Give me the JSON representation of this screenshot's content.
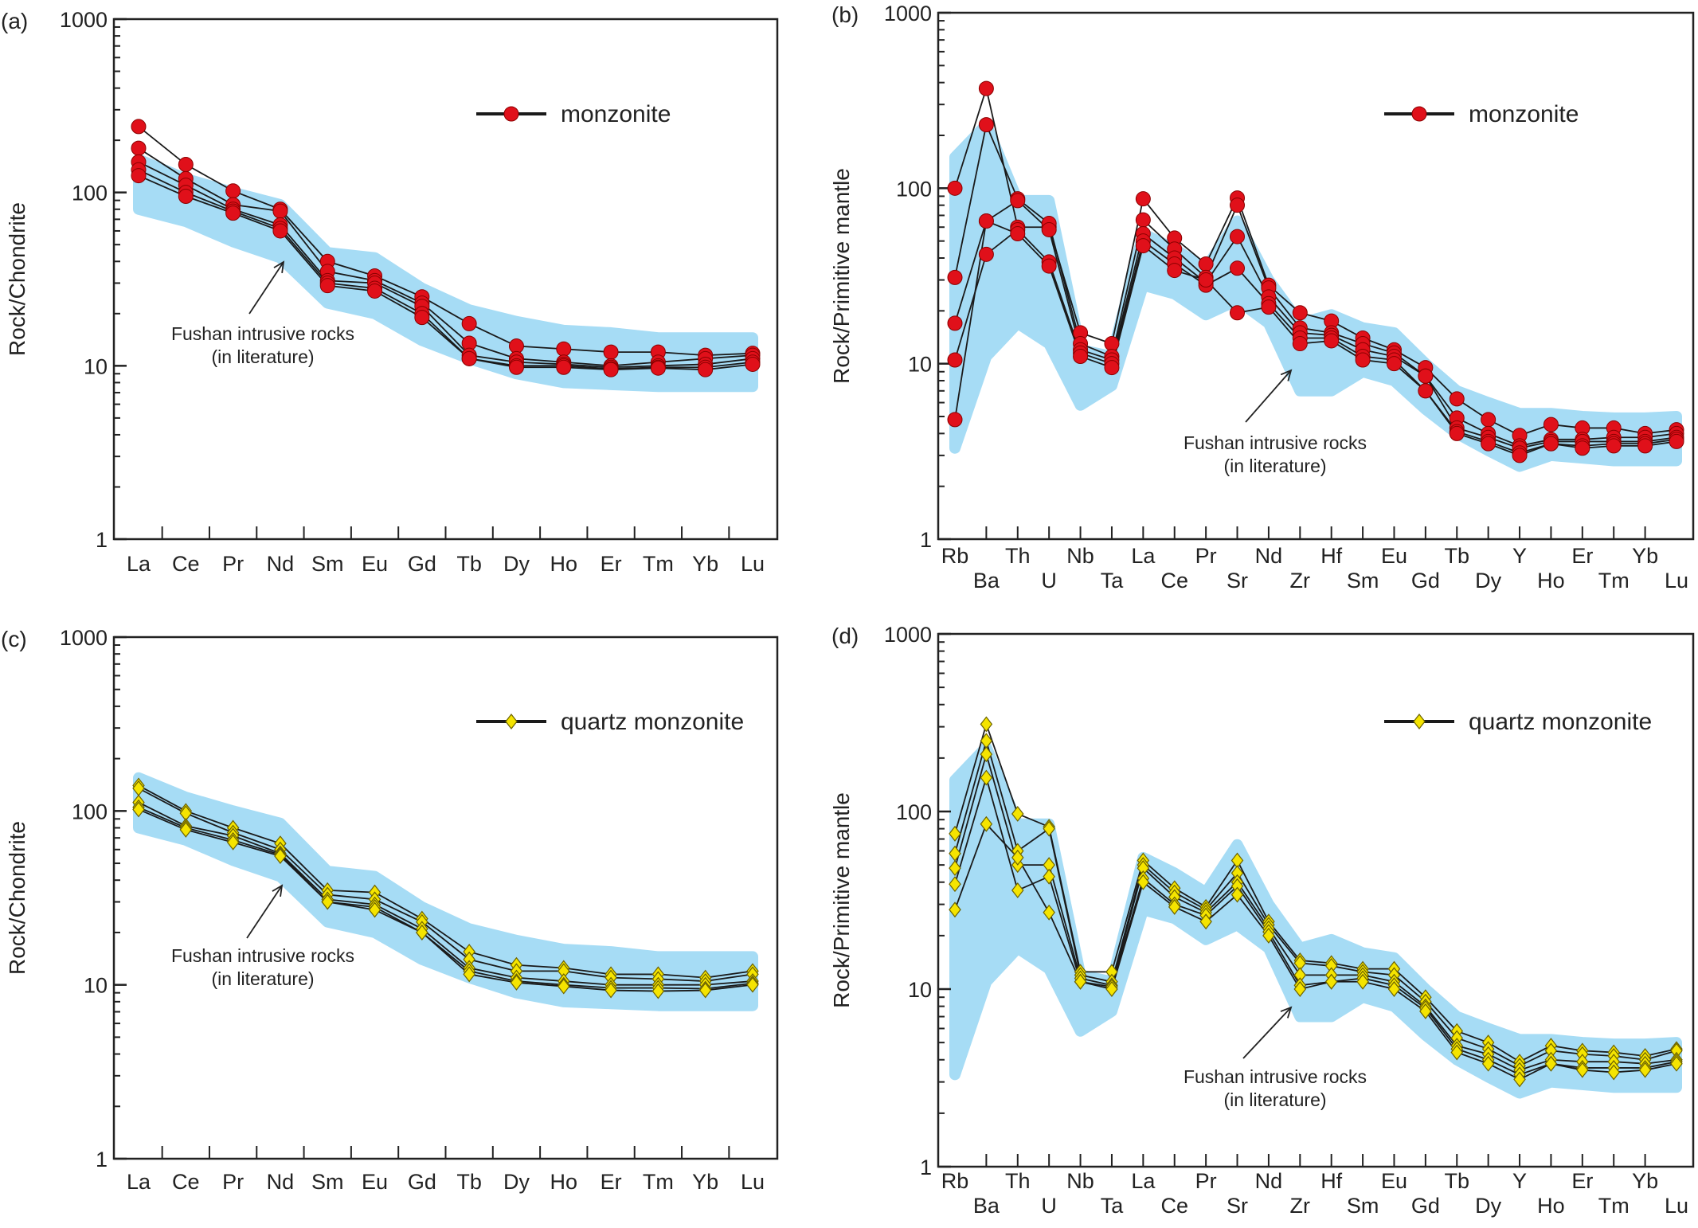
{
  "chart_data": [
    {
      "panel_label": "(a)",
      "type": "line",
      "ylabel": "Rock/Chondrite",
      "yscale": "log",
      "ylim": [
        1,
        1000
      ],
      "yticks": [
        "1",
        "10",
        "100",
        "1000"
      ],
      "categories": [
        "La",
        "Ce",
        "Pr",
        "Nd",
        "Sm",
        "Eu",
        "Gd",
        "Tb",
        "Dy",
        "Ho",
        "Er",
        "Tm",
        "Yb",
        "Lu"
      ],
      "legend": {
        "label": "monzonite",
        "marker": "circle",
        "color": "#e0101a",
        "position": "top-right"
      },
      "annotation": {
        "line1": "Fushan intrusive rocks",
        "line2": "(in literature)"
      },
      "literature_band": {
        "color": "#a6dcf5",
        "upper": [
          155,
          120,
          100,
          85,
          45,
          42,
          28,
          21,
          18,
          16,
          15.5,
          14.5,
          14.5,
          14.5
        ],
        "lower": [
          80,
          68,
          52,
          42,
          23,
          20,
          14,
          11,
          9,
          8,
          7.8,
          7.6,
          7.6,
          7.6
        ]
      },
      "series": [
        {
          "values": [
            240,
            145,
            102,
            80,
            40,
            33,
            25,
            17.5,
            13,
            12.5,
            12,
            12,
            11.5,
            11.8
          ]
        },
        {
          "values": [
            180,
            120,
            85,
            78,
            35,
            31,
            23,
            13.5,
            11,
            10.5,
            10,
            10.5,
            11,
            11.5
          ]
        },
        {
          "values": [
            150,
            110,
            80,
            65,
            31,
            30,
            22,
            11.5,
            10.5,
            10.2,
            9.8,
            10,
            10.2,
            11
          ]
        },
        {
          "values": [
            135,
            100,
            78,
            62,
            30,
            28,
            20,
            11,
            10,
            10,
            9.6,
            9.8,
            9.8,
            10.5
          ]
        },
        {
          "values": [
            125,
            95,
            76,
            60,
            29,
            27,
            19,
            11,
            9.8,
            9.8,
            9.5,
            9.7,
            9.5,
            10.2
          ]
        }
      ]
    },
    {
      "panel_label": "(b)",
      "type": "line",
      "ylabel": "Rock/Primitive mantle",
      "yscale": "log",
      "ylim": [
        1,
        1000
      ],
      "yticks": [
        "1",
        "10",
        "100",
        "1000"
      ],
      "categories": [
        "Rb",
        "Ba",
        "Th",
        "U",
        "Nb",
        "Ta",
        "La",
        "Ce",
        "Pr",
        "Sr",
        "Nd",
        "Zr",
        "Hf",
        "Sm",
        "Eu",
        "Gd",
        "Tb",
        "Dy",
        "Y",
        "Ho",
        "Er",
        "Tm",
        "Yb",
        "Lu"
      ],
      "legend": {
        "label": "monzonite",
        "marker": "circle",
        "color": "#e0101a",
        "position": "top-right"
      },
      "annotation": {
        "line1": "Fushan intrusive rocks",
        "line2": "(in literature)"
      },
      "literature_band": {
        "color": "#a6dcf5",
        "upper": [
          150,
          230,
          85,
          85,
          12,
          11,
          55,
          45,
          35,
          65,
          30,
          17,
          19,
          16,
          15,
          10,
          7,
          6,
          5.2,
          5.2,
          5,
          4.9,
          4.9,
          5
        ],
        "lower": [
          3.3,
          11,
          17,
          13,
          5.8,
          7.5,
          28,
          25,
          19,
          23,
          17,
          7,
          7,
          9,
          8,
          5.5,
          4,
          3.2,
          2.6,
          3,
          2.9,
          2.8,
          2.8,
          2.8
        ]
      },
      "series": [
        {
          "values": [
            100,
            370,
            60,
            60,
            15,
            13,
            87,
            52,
            37,
            88,
            28,
            19.5,
            17.5,
            14,
            12,
            9.5,
            6.3,
            4.8,
            3.9,
            4.5,
            4.3,
            4.3,
            4.0,
            4.2
          ]
        },
        {
          "values": [
            31,
            230,
            87,
            63,
            13,
            11,
            66,
            45,
            31,
            80,
            27,
            16,
            15,
            13,
            11.5,
            8.5,
            4.9,
            4.0,
            3.4,
            3.7,
            3.7,
            3.8,
            3.8,
            4.0
          ]
        },
        {
          "values": [
            17,
            65,
            85,
            58,
            12,
            10.5,
            55,
            40,
            29,
            53,
            24,
            15,
            14.5,
            12,
            11,
            8.5,
            4.3,
            3.8,
            3.3,
            3.6,
            3.6,
            3.6,
            3.6,
            3.8
          ]
        },
        {
          "values": [
            10.5,
            42,
            58,
            38,
            11.5,
            10,
            50,
            37,
            28,
            35,
            22,
            14,
            14,
            11,
            10.5,
            7.0,
            4.1,
            3.6,
            3.1,
            3.5,
            3.4,
            3.5,
            3.5,
            3.7
          ]
        },
        {
          "values": [
            4.8,
            65,
            55,
            36,
            11,
            9.5,
            47,
            34,
            30,
            19.5,
            21,
            13,
            13.5,
            10.5,
            10,
            7.0,
            4.0,
            3.5,
            3.0,
            3.5,
            3.3,
            3.4,
            3.4,
            3.6
          ]
        }
      ]
    },
    {
      "panel_label": "(c)",
      "type": "line",
      "ylabel": "Rock/Chondrite",
      "yscale": "log",
      "ylim": [
        1,
        1000
      ],
      "yticks": [
        "1",
        "10",
        "100",
        "1000"
      ],
      "categories": [
        "La",
        "Ce",
        "Pr",
        "Nd",
        "Sm",
        "Eu",
        "Gd",
        "Tb",
        "Dy",
        "Ho",
        "Er",
        "Tm",
        "Yb",
        "Lu"
      ],
      "legend": {
        "label": "quartz monzonite",
        "marker": "diamond",
        "color": "#f5e400",
        "position": "top-right"
      },
      "annotation": {
        "line1": "Fushan intrusive rocks",
        "line2": "(in literature)"
      },
      "literature_band": {
        "color": "#a6dcf5",
        "upper": [
          155,
          120,
          100,
          85,
          45,
          42,
          28,
          21,
          18,
          16,
          15.5,
          14.5,
          14.5,
          14.5
        ],
        "lower": [
          80,
          68,
          52,
          42,
          23,
          20,
          14,
          11,
          9,
          8,
          7.8,
          7.6,
          7.6,
          7.6
        ]
      },
      "series": [
        {
          "values": [
            140,
            100,
            80,
            65,
            35,
            34,
            24,
            15.5,
            13,
            12.5,
            11.5,
            11.5,
            11,
            12
          ]
        },
        {
          "values": [
            135,
            97,
            75,
            60,
            33,
            31,
            23,
            14,
            12,
            12,
            11,
            10.8,
            10.5,
            11.5
          ]
        },
        {
          "values": [
            112,
            82,
            72,
            57,
            31,
            29,
            21,
            12.5,
            11,
            10.5,
            10,
            10,
            10,
            10.5
          ]
        },
        {
          "values": [
            105,
            80,
            68,
            56,
            30,
            28,
            20,
            12,
            10.5,
            10,
            9.6,
            9.6,
            9.5,
            10.2
          ]
        },
        {
          "values": [
            102,
            78,
            66,
            55,
            30,
            27,
            20,
            11.5,
            10.3,
            9.8,
            9.3,
            9.2,
            9.3,
            10
          ]
        }
      ]
    },
    {
      "panel_label": "(d)",
      "type": "line",
      "ylabel": "Rock/Primitive mantle",
      "yscale": "log",
      "ylim": [
        1,
        1000
      ],
      "yticks": [
        "1",
        "10",
        "100",
        "1000"
      ],
      "categories": [
        "Rb",
        "Ba",
        "Th",
        "U",
        "Nb",
        "Ta",
        "La",
        "Ce",
        "Pr",
        "Sr",
        "Nd",
        "Zr",
        "Hf",
        "Sm",
        "Eu",
        "Gd",
        "Tb",
        "Dy",
        "Y",
        "Ho",
        "Er",
        "Tm",
        "Yb",
        "Lu"
      ],
      "legend": {
        "label": "quartz monzonite",
        "marker": "diamond",
        "color": "#f5e400",
        "position": "top-right"
      },
      "annotation": {
        "line1": "Fushan intrusive rocks",
        "line2": "(in literature)"
      },
      "literature_band": {
        "color": "#a6dcf5",
        "upper": [
          150,
          230,
          85,
          85,
          12,
          11,
          55,
          45,
          35,
          65,
          30,
          17,
          19,
          16,
          15,
          10,
          7,
          6,
          5.2,
          5.2,
          5,
          4.9,
          4.9,
          5
        ],
        "lower": [
          3.3,
          11,
          17,
          13,
          5.8,
          7.5,
          28,
          25,
          19,
          23,
          17,
          7,
          7,
          9,
          8,
          5.5,
          4,
          3.2,
          2.6,
          3,
          2.9,
          2.8,
          2.8,
          2.8
        ]
      },
      "series": [
        {
          "values": [
            75,
            310,
            97,
            82,
            12.5,
            12.5,
            53,
            37,
            29,
            53,
            24,
            14.5,
            14,
            13,
            13,
            9,
            5.8,
            5.0,
            3.9,
            4.8,
            4.5,
            4.4,
            4.2,
            4.6
          ]
        },
        {
          "values": [
            58,
            250,
            60,
            80,
            12,
            11,
            50,
            35,
            28,
            45,
            23,
            14,
            13.5,
            12.5,
            12,
            8.5,
            5.3,
            4.6,
            3.7,
            4.5,
            4.3,
            4.2,
            4.0,
            4.5
          ]
        },
        {
          "values": [
            48,
            210,
            50,
            50,
            11.5,
            10.5,
            48,
            33,
            27,
            40,
            22,
            12,
            12,
            12,
            11,
            8,
            4.8,
            4.3,
            3.5,
            4.0,
            3.9,
            3.9,
            3.8,
            4.0
          ]
        },
        {
          "values": [
            39,
            155,
            36,
            43,
            11,
            10.3,
            42,
            30,
            26,
            38,
            21,
            10.5,
            11,
            11.5,
            10.5,
            7.8,
            4.6,
            4.0,
            3.3,
            3.8,
            3.6,
            3.6,
            3.6,
            3.9
          ]
        },
        {
          "values": [
            28,
            85,
            55,
            27,
            11,
            10,
            40,
            29,
            24,
            34,
            20,
            10,
            11,
            11,
            10,
            7.5,
            4.4,
            3.8,
            3.1,
            3.8,
            3.5,
            3.4,
            3.5,
            3.8
          ]
        }
      ]
    }
  ]
}
